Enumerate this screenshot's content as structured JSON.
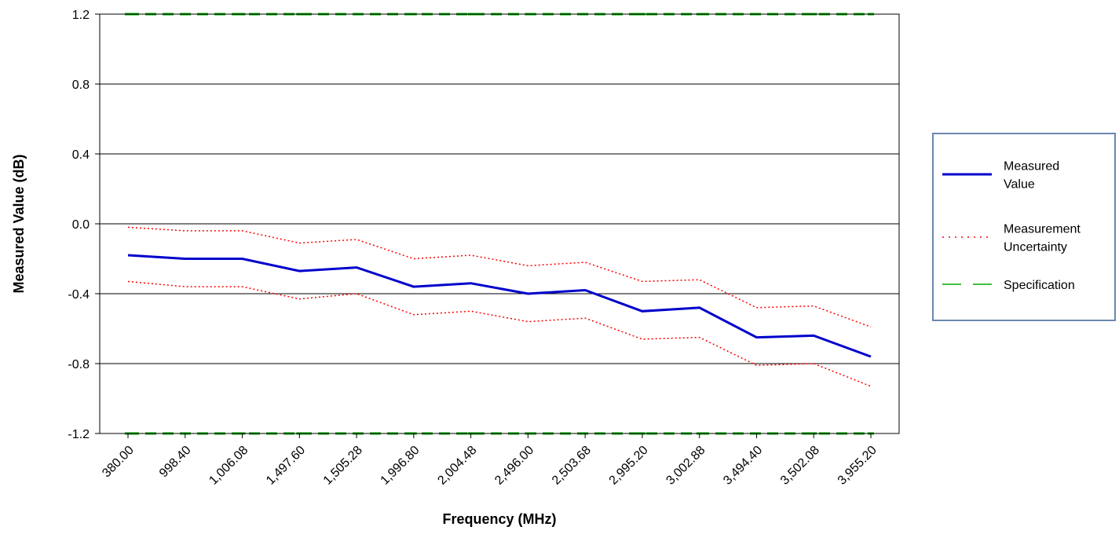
{
  "chart_data": {
    "type": "line",
    "title": "",
    "xlabel": "Frequency (MHz)",
    "ylabel": "Measured Value (dB)",
    "ylim": [
      -1.2,
      1.2
    ],
    "yticks": [
      "1.2",
      "0.8",
      "0.4",
      "0.0",
      "-0.4",
      "-0.8",
      "-1.2"
    ],
    "grid": "horizontal",
    "legend_position": "right",
    "categories": [
      "380.00",
      "998.40",
      "1,006.08",
      "1,497.60",
      "1,505.28",
      "1,996.80",
      "2,004.48",
      "2,496.00",
      "2,503.68",
      "2,995.20",
      "3,002.88",
      "3,494.40",
      "3,502.08",
      "3,955.20"
    ],
    "series": [
      {
        "name": "Measured Value",
        "role": "measured",
        "color": "#0000cc",
        "style": "solid",
        "values": [
          -0.18,
          -0.2,
          -0.2,
          -0.27,
          -0.25,
          -0.36,
          -0.34,
          -0.4,
          -0.38,
          -0.5,
          -0.48,
          -0.65,
          -0.64,
          -0.76
        ]
      },
      {
        "name": "Measurement Uncertainty",
        "role": "upper",
        "color": "#ff0000",
        "style": "dotted",
        "values": [
          -0.02,
          -0.04,
          -0.04,
          -0.11,
          -0.09,
          -0.2,
          -0.18,
          -0.24,
          -0.22,
          -0.33,
          -0.32,
          -0.48,
          -0.47,
          -0.59
        ]
      },
      {
        "name": "Measurement Uncertainty",
        "role": "lower",
        "color": "#ff0000",
        "style": "dotted",
        "values": [
          -0.33,
          -0.36,
          -0.36,
          -0.43,
          -0.4,
          -0.52,
          -0.5,
          -0.56,
          -0.54,
          -0.66,
          -0.65,
          -0.81,
          -0.8,
          -0.93
        ]
      },
      {
        "name": "Specification",
        "role": "spec-upper",
        "color": "#00aa00",
        "style": "dashed",
        "values": [
          1.2,
          1.2,
          1.2,
          1.2,
          1.2,
          1.2,
          1.2,
          1.2,
          1.2,
          1.2,
          1.2,
          1.2,
          1.2,
          1.2
        ]
      },
      {
        "name": "Specification",
        "role": "spec-lower",
        "color": "#00aa00",
        "style": "dashed",
        "values": [
          -1.2,
          -1.2,
          -1.2,
          -1.2,
          -1.2,
          -1.2,
          -1.2,
          -1.2,
          -1.2,
          -1.2,
          -1.2,
          -1.2,
          -1.2,
          -1.2
        ]
      }
    ],
    "legend": [
      {
        "label_lines": [
          "Measured",
          "Value"
        ],
        "color": "#0000cc",
        "style": "solid"
      },
      {
        "label_lines": [
          "Measurement",
          "Uncertainty"
        ],
        "color": "#ff0000",
        "style": "dotted"
      },
      {
        "label_lines": [
          "Specification"
        ],
        "color": "#00aa00",
        "style": "dashed"
      }
    ],
    "legend_border_color": "#6c87b0"
  }
}
